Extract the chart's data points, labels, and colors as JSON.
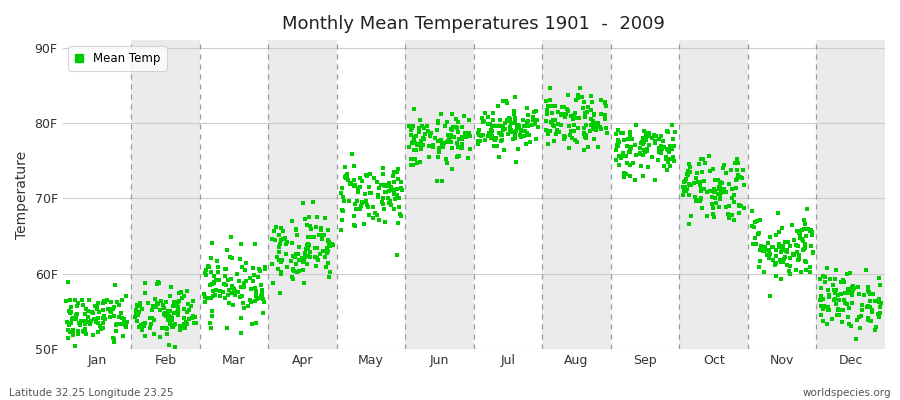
{
  "title": "Monthly Mean Temperatures 1901  -  2009",
  "ylabel": "Temperature",
  "bottom_left": "Latitude 32.25 Longitude 23.25",
  "bottom_right": "worldspecies.org",
  "legend_label": "Mean Temp",
  "marker_color": "#00CC00",
  "fig_bg_color": "#ffffff",
  "plot_bg_color": "#ffffff",
  "band_light": "#ffffff",
  "band_dark": "#ebebeb",
  "dashed_line_color": "#999999",
  "ytick_line_color": "#cccccc",
  "ylim": [
    50,
    91
  ],
  "yticks": [
    50,
    60,
    70,
    80,
    90
  ],
  "ytick_labels": [
    "50F",
    "60F",
    "70F",
    "80F",
    "90F"
  ],
  "n_years": 109,
  "monthly_means": [
    54.0,
    54.5,
    58.5,
    63.5,
    70.5,
    77.5,
    79.5,
    80.0,
    76.5,
    71.5,
    63.5,
    56.5
  ],
  "monthly_stds": [
    1.8,
    2.0,
    2.3,
    2.3,
    2.3,
    1.8,
    1.6,
    1.8,
    1.8,
    2.3,
    2.3,
    2.0
  ],
  "month_names": [
    "Jan",
    "Feb",
    "Mar",
    "Apr",
    "May",
    "Jun",
    "Jul",
    "Aug",
    "Sep",
    "Oct",
    "Nov",
    "Dec"
  ]
}
